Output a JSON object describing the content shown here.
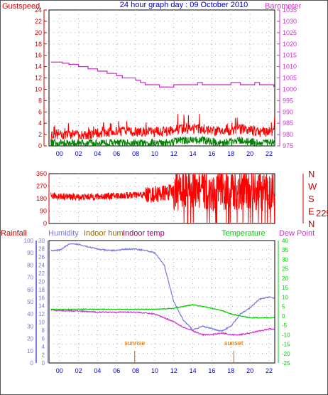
{
  "title": "24 hour graph day : 09 October 2010",
  "colors": {
    "gust": "#ff0000",
    "wind": "#008000",
    "winddir": "#ff0000",
    "baro": "#cc33cc",
    "humidity": "#7777dd",
    "indoor_hum": "#996600",
    "indoor_temp": "#990066",
    "temperature": "#00cc00",
    "dewpoint": "#cc33cc",
    "rain": "#7777dd",
    "axis_blue": "#0000cc",
    "red_label": "#cc0000",
    "sun": "#cc6600"
  },
  "x_ticks": [
    "00",
    "02",
    "04",
    "06",
    "08",
    "10",
    "12",
    "14",
    "16",
    "18",
    "20",
    "22"
  ],
  "panel1": {
    "left_label": "Gustspeed",
    "right_label": "Barometer",
    "left_ticks": [
      "0",
      "2",
      "4",
      "6",
      "8",
      "10",
      "12",
      "14",
      "16",
      "18",
      "20",
      "22",
      "24"
    ],
    "right_ticks": [
      "975",
      "980",
      "985",
      "990",
      "995",
      "1000",
      "1005",
      "1010",
      "1015",
      "1020",
      "1025",
      "1030",
      "1035"
    ]
  },
  "panel2": {
    "left_ticks": [
      "0",
      "90",
      "180",
      "270",
      "360"
    ],
    "dir_labels": [
      "N",
      "W",
      "S",
      "E",
      "N"
    ],
    "current_dir": "225"
  },
  "panel3": {
    "labels": {
      "rainfall": "Rainfall",
      "humidity": "Humidity",
      "indoor_hum": "Indoor hum",
      "indoor_temp": "Indoor temp",
      "temperature": "Temperature",
      "dewpoint": "Dew Point"
    },
    "left_ticks_hum": [
      "0",
      "10",
      "20",
      "30",
      "40",
      "50",
      "60",
      "70",
      "80",
      "90",
      "100"
    ],
    "left_ticks_rain": [
      "0",
      "2",
      "4",
      "6",
      "8",
      "10",
      "12",
      "14",
      "16",
      "18",
      "20",
      "22",
      "24",
      "26",
      "28",
      "30"
    ],
    "right_ticks": [
      "-25",
      "-20",
      "-15",
      "-10",
      "-5",
      "0",
      "5",
      "10",
      "15",
      "20",
      "25",
      "30",
      "35",
      "40"
    ],
    "sunrise_label": "sunrise",
    "sunset_label": "sunset",
    "x_tick_sunrise": "sunrise"
  },
  "chart_data": [
    {
      "type": "line",
      "title": "24 hour graph day : 09 October 2010",
      "ylabel": "Gustspeed",
      "y2label": "Barometer",
      "ylim": [
        0,
        24
      ],
      "y2lim": [
        975,
        1035
      ],
      "series": [
        {
          "name": "Barometer",
          "x": [
            -0.9,
            0.3,
            1.0,
            2.0,
            3.0,
            4.0,
            5.0,
            6.0,
            6.6,
            7.0,
            8.0,
            8.5,
            9.0,
            9.5,
            10.0,
            10.5,
            11.0,
            12.0,
            13.0,
            14.0,
            14.5,
            15.0,
            16.0,
            17.0,
            17.5,
            18.0,
            18.5,
            19.0,
            20.0,
            20.5,
            21.0,
            21.5,
            22.5
          ],
          "y": [
            1012,
            1011.5,
            1011,
            1010,
            1009,
            1008,
            1007,
            1006,
            1005,
            1005,
            1004,
            1003,
            1002,
            1002,
            1002,
            1001,
            1001,
            1002,
            1002,
            1002,
            1003,
            1002,
            1002,
            1002,
            1002,
            1003,
            1003,
            1002,
            1002,
            1003,
            1002,
            1002,
            1001
          ]
        },
        {
          "name": "Gustspeed",
          "x": [
            -0.9,
            1,
            3,
            5,
            7,
            9,
            11,
            13,
            15,
            17,
            19,
            21,
            22.5
          ],
          "y": [
            2,
            2,
            2,
            2.5,
            2.5,
            2.5,
            2.5,
            3,
            3,
            2.5,
            3,
            2.5,
            2.5
          ]
        },
        {
          "name": "Wind speed",
          "x": [
            -0.9,
            1,
            3,
            5,
            7,
            9,
            11,
            13,
            15,
            17,
            19,
            21,
            22.5
          ],
          "y": [
            0.5,
            0.5,
            0.5,
            0.5,
            0.5,
            0.5,
            0.5,
            1,
            1,
            0.5,
            1,
            0.5,
            0.5
          ]
        }
      ]
    },
    {
      "type": "line",
      "ylim": [
        0,
        360
      ],
      "series": [
        {
          "name": "Wind direction",
          "x": [
            -0.9,
            2,
            4,
            6,
            8,
            10,
            12,
            13,
            14,
            15,
            16,
            17,
            18,
            19,
            20,
            21,
            22.5
          ],
          "y": [
            200,
            190,
            195,
            200,
            205,
            210,
            230,
            240,
            250,
            235,
            220,
            240,
            230,
            240,
            235,
            230,
            225
          ]
        }
      ]
    },
    {
      "type": "line",
      "ylim": [
        0,
        100
      ],
      "y2lim": [
        -25,
        40
      ],
      "series": [
        {
          "name": "Humidity",
          "x": [
            -0.9,
            0,
            1,
            2,
            3,
            4,
            5,
            6,
            7,
            8,
            9,
            10,
            11,
            12,
            13,
            14,
            15,
            16,
            17,
            18,
            19,
            20,
            21,
            22,
            22.5
          ],
          "y": [
            92,
            92,
            97,
            97,
            95,
            93,
            92,
            92,
            93,
            93,
            92,
            90,
            80,
            50,
            35,
            27,
            30,
            28,
            26,
            30,
            40,
            45,
            52,
            54,
            53
          ]
        },
        {
          "name": "Indoor temp",
          "x": [
            -0.9,
            2,
            4,
            6,
            8,
            10,
            11,
            12,
            13,
            14,
            15,
            16,
            17,
            18,
            19,
            20,
            21,
            22,
            22.5
          ],
          "y": [
            3,
            2.5,
            2,
            2,
            2,
            1,
            -1,
            -3,
            -6,
            -8,
            -10,
            -10,
            -9,
            -10,
            -10,
            -9,
            -8,
            -7,
            -7
          ]
        },
        {
          "name": "Temperature",
          "x": [
            -0.9,
            2,
            4,
            6,
            8,
            10,
            12,
            13,
            14,
            15,
            16,
            17,
            18,
            19,
            20,
            21,
            22,
            22.5
          ],
          "y": [
            3.5,
            3.5,
            3.5,
            3.5,
            3.5,
            3.5,
            4,
            5,
            6,
            5,
            4,
            3,
            1,
            0,
            -1,
            -1,
            -1,
            -1
          ]
        }
      ]
    }
  ]
}
